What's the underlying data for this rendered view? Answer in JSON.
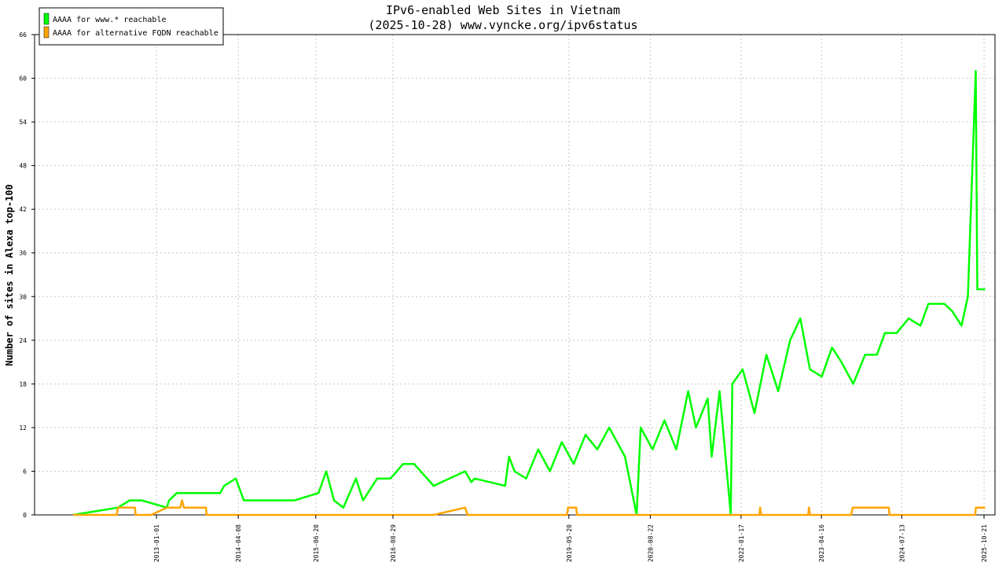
{
  "chart_data": {
    "type": "line",
    "title": "IPv6-enabled Web Sites in Vietnam",
    "subtitle": "(2025-10-28) www.vyncke.org/ipv6status",
    "ylabel": "Number of sites in Alexa top-100",
    "xlim": [
      "2011-02-12",
      "2025-12-22"
    ],
    "xticks": [
      "2013-01-01",
      "2014-04-08",
      "2015-06-20",
      "2016-08-29",
      "2019-05-20",
      "2020-08-22",
      "2022-01-17",
      "2023-04-16",
      "2024-07-13",
      "2025-10-21"
    ],
    "ylim": [
      0,
      66
    ],
    "yticks": [
      0,
      6,
      12,
      18,
      24,
      30,
      36,
      42,
      48,
      54,
      60,
      66
    ],
    "grid": true,
    "legend": "upper left",
    "series": [
      {
        "name": "AAAA for www.* reachable",
        "color": "#00ff00",
        "x": [
          "2011-09-18",
          "2012-05-28",
          "2012-08-03",
          "2012-10-09",
          "2013-02-28",
          "2013-03-13",
          "2013-04-26",
          "2013-12-27",
          "2014-01-18",
          "2014-03-25",
          "2014-05-09",
          "2015-02-20",
          "2015-07-05",
          "2015-08-18",
          "2015-10-01",
          "2015-11-23",
          "2016-02-02",
          "2016-03-13",
          "2016-06-01",
          "2016-08-15",
          "2016-09-20",
          "2016-10-25",
          "2016-12-26",
          "2017-04-16",
          "2017-10-11",
          "2017-11-15",
          "2017-12-03",
          "2018-05-25",
          "2018-06-16",
          "2018-07-17",
          "2018-09-21",
          "2018-11-28",
          "2019-02-02",
          "2019-04-10",
          "2019-06-16",
          "2019-08-22",
          "2019-10-28",
          "2020-01-03",
          "2020-04-01",
          "2020-06-06",
          "2020-06-29",
          "2020-09-04",
          "2020-11-10",
          "2021-01-16",
          "2021-03-24",
          "2021-05-07",
          "2021-07-13",
          "2021-08-04",
          "2021-09-18",
          "2021-11-20",
          "2021-11-29",
          "2022-01-26",
          "2022-04-03",
          "2022-06-09",
          "2022-08-15",
          "2022-10-21",
          "2022-12-18",
          "2023-02-10",
          "2023-04-18",
          "2023-06-15",
          "2023-08-07",
          "2023-10-13",
          "2023-12-19",
          "2024-02-24",
          "2024-04-09",
          "2024-06-15",
          "2024-08-21",
          "2024-10-27",
          "2024-12-11",
          "2025-03-11",
          "2025-04-24",
          "2025-06-16",
          "2025-07-22",
          "2025-09-04",
          "2025-09-13",
          "2025-10-28"
        ],
        "values": [
          0,
          1,
          2,
          2,
          1,
          2,
          3,
          3,
          4,
          5,
          2,
          2,
          3,
          6,
          2,
          1,
          5,
          2,
          5,
          5,
          6,
          7,
          7,
          4,
          6,
          4.5,
          5,
          4,
          8,
          6,
          5,
          9,
          6,
          10,
          7,
          11,
          9,
          12,
          8,
          0,
          12,
          9,
          13,
          9,
          17,
          12,
          16,
          8,
          17,
          0,
          18,
          20,
          14,
          22,
          17,
          24,
          27,
          20,
          19,
          23,
          21,
          18,
          22,
          22,
          25,
          25,
          27,
          26,
          29,
          29,
          28,
          26,
          30,
          61,
          31,
          31
        ]
      },
      {
        "name": "AAAA for alternative FQDN reachable",
        "color": "#ffa500",
        "x": [
          "2011-09-18",
          "2012-05-20",
          "2012-05-28",
          "2012-09-01",
          "2012-09-05",
          "2012-12-01",
          "2013-03-01",
          "2013-05-15",
          "2013-05-25",
          "2013-06-05",
          "2013-10-08",
          "2013-10-10",
          "2017-04-16",
          "2017-10-11",
          "2017-10-25",
          "2019-05-10",
          "2019-05-15",
          "2019-07-01",
          "2019-07-05",
          "2022-05-01",
          "2022-05-05",
          "2022-05-10",
          "2023-02-01",
          "2023-02-05",
          "2023-02-10",
          "2023-10-01",
          "2023-10-10",
          "2024-05-01",
          "2024-05-05",
          "2025-09-01",
          "2025-09-05",
          "2025-10-28"
        ],
        "values": [
          0,
          0,
          1,
          1,
          0,
          0,
          1,
          1,
          2,
          1,
          1,
          0,
          0,
          1,
          0,
          0,
          1,
          1,
          0,
          0,
          1,
          0,
          0,
          1,
          0,
          0,
          1,
          1,
          0,
          0,
          1,
          1
        ]
      }
    ]
  }
}
